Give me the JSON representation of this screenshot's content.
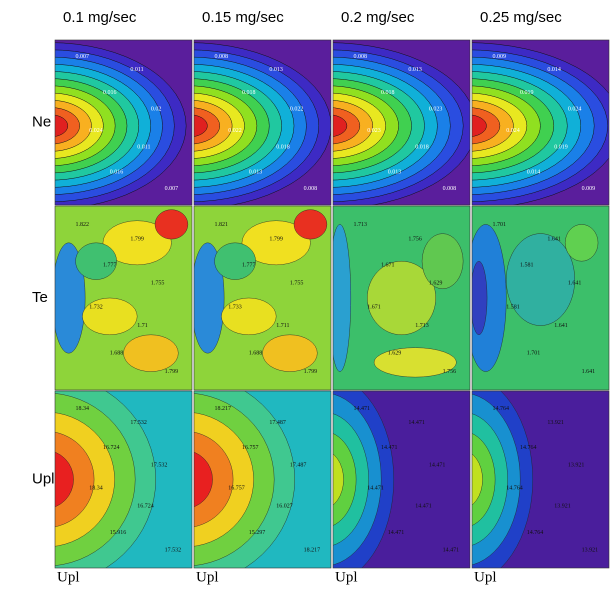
{
  "columns": [
    "0.1 mg/sec",
    "0.15 mg/sec",
    "0.2 mg/sec",
    "0.25 mg/sec"
  ],
  "rows": [
    {
      "label": "Ne",
      "panels": [
        {
          "labels": [
            "0.007",
            "0.011",
            "0.016",
            "0.02",
            "0.024",
            "0.011",
            "0.016",
            "0.007"
          ]
        },
        {
          "labels": [
            "0.008",
            "0.013",
            "0.018",
            "0.022",
            "0.022",
            "0.018",
            "0.013",
            "0.008"
          ]
        },
        {
          "labels": [
            "0.008",
            "0.013",
            "0.018",
            "0.023",
            "0.023",
            "0.018",
            "0.013",
            "0.008"
          ]
        },
        {
          "labels": [
            "0.009",
            "0.014",
            "0.019",
            "0.024",
            "0.024",
            "0.019",
            "0.014",
            "0.009"
          ]
        }
      ]
    },
    {
      "label": "Te",
      "panels": [
        {
          "labels": [
            "1.822",
            "1.799",
            "1.777",
            "1.755",
            "1.732",
            "1.71",
            "1.688",
            "1.799"
          ]
        },
        {
          "labels": [
            "1.821",
            "1.799",
            "1.777",
            "1.755",
            "1.733",
            "1.711",
            "1.688",
            "1.799"
          ]
        },
        {
          "labels": [
            "1.713",
            "1.756",
            "1.671",
            "1.629",
            "1.671",
            "1.713",
            "1.629",
            "1.756"
          ]
        },
        {
          "labels": [
            "1.701",
            "1.641",
            "1.581",
            "1.641",
            "1.581",
            "1.641",
            "1.701",
            "1.641"
          ]
        }
      ]
    },
    {
      "label": "Upl",
      "panels": [
        {
          "labels": [
            "18.34",
            "17.532",
            "16.724",
            "17.532",
            "18.34",
            "16.724",
            "15.916",
            "17.532"
          ]
        },
        {
          "labels": [
            "18.217",
            "17.487",
            "16.757",
            "17.487",
            "16.757",
            "16.027",
            "15.297",
            "18.217"
          ]
        },
        {
          "labels": [
            "14.471",
            "14.471",
            "14.471",
            "14.471",
            "14.471",
            "14.471",
            "14.471",
            "14.471"
          ]
        },
        {
          "labels": [
            "14.764",
            "13.921",
            "14.764",
            "13.921",
            "14.764",
            "13.921",
            "14.764",
            "13.921"
          ]
        }
      ]
    }
  ],
  "footer": [
    "Upl",
    "Upl",
    "Upl",
    "Upl"
  ]
}
